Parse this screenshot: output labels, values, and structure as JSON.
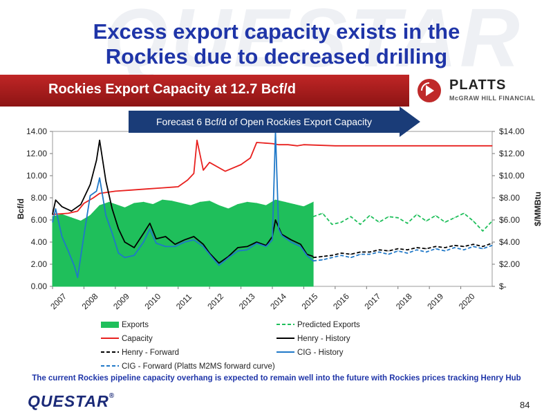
{
  "slide": {
    "watermark": "QUESTAR",
    "title_line1": "Excess export capacity exists in the",
    "title_line2": "Rockies due to decreased drilling",
    "banner_title": "Rockies Export Capacity at 12.7 Bcf/d",
    "platts_name": "PLATTS",
    "platts_sub": "McGRAW HILL FINANCIAL",
    "callout": "Forecast 6 Bcf/d of Open Rockies Export Capacity",
    "footnote": "The current Rockies pipeline capacity overhang is expected to remain well into the future with Rockies prices tracking Henry Hub",
    "logo_text": "QUESTAR",
    "logo_mark": "®",
    "page_number": "84"
  },
  "colors": {
    "title": "#1f35a8",
    "banner": "#b01e1e",
    "exports": "#1fbf5b",
    "capacity": "#e8201e",
    "henry": "#000000",
    "cig": "#1f78c8",
    "arrow": "#1a3c78"
  },
  "chart_data": {
    "type": "line",
    "ylabel_left": "Bcf/d",
    "ylabel_right": "$/MMBtu",
    "ylim_left": [
      0,
      14
    ],
    "ylim_right": [
      0,
      14
    ],
    "yticks_left": [
      "0.00",
      "2.00",
      "4.00",
      "6.00",
      "8.00",
      "10.00",
      "12.00",
      "14.00"
    ],
    "yticks_right": [
      "$-",
      "$2.00",
      "$4.00",
      "$6.00",
      "$8.00",
      "$10.00",
      "$12.00",
      "$14.00"
    ],
    "xlim": [
      2007,
      2021
    ],
    "xticks": [
      "2007",
      "2008",
      "2009",
      "2010",
      "2011",
      "2012",
      "2013",
      "2014",
      "2015",
      "2016",
      "2017",
      "2018",
      "2019",
      "2020"
    ],
    "legend_position": "bottom",
    "legend": [
      {
        "label": "Exports",
        "style": "area",
        "color": "#1fbf5b"
      },
      {
        "label": "Predicted Exports",
        "style": "dashed",
        "color": "#1fbf5b"
      },
      {
        "label": "Capacity",
        "style": "solid",
        "color": "#e8201e"
      },
      {
        "label": "Henry - History",
        "style": "solid",
        "color": "#000000"
      },
      {
        "label": "Henry - Forward",
        "style": "dashed",
        "color": "#000000"
      },
      {
        "label": "CIG - History",
        "style": "solid",
        "color": "#1f78c8"
      },
      {
        "label": "CIG - Forward (Platts M2MS forward curve)",
        "style": "dashed",
        "color": "#1f78c8"
      }
    ],
    "series": [
      {
        "name": "Exports",
        "axis": "left",
        "x": [
          2007.0,
          2007.3,
          2007.6,
          2007.9,
          2008.2,
          2008.5,
          2008.8,
          2009.0,
          2009.3,
          2009.6,
          2009.9,
          2010.2,
          2010.5,
          2010.8,
          2011.1,
          2011.4,
          2011.7,
          2012.0,
          2012.3,
          2012.6,
          2012.9,
          2013.2,
          2013.5,
          2013.8,
          2014.1,
          2014.4,
          2014.7,
          2015.0,
          2015.3
        ],
        "values": [
          6.3,
          6.5,
          6.2,
          5.9,
          6.4,
          7.3,
          7.6,
          7.4,
          7.1,
          7.5,
          7.6,
          7.4,
          7.8,
          7.7,
          7.5,
          7.3,
          7.6,
          7.7,
          7.3,
          7.0,
          7.4,
          7.6,
          7.5,
          7.3,
          7.8,
          7.6,
          7.4,
          7.2,
          7.6
        ]
      },
      {
        "name": "Predicted Exports",
        "axis": "left",
        "x": [
          2015.3,
          2015.6,
          2015.9,
          2016.2,
          2016.5,
          2016.8,
          2017.1,
          2017.4,
          2017.7,
          2018.0,
          2018.3,
          2018.6,
          2018.9,
          2019.2,
          2019.5,
          2019.8,
          2020.1,
          2020.4,
          2020.7,
          2021.0
        ],
        "values": [
          6.3,
          6.6,
          5.6,
          5.8,
          6.3,
          5.6,
          6.4,
          5.8,
          6.3,
          6.2,
          5.7,
          6.5,
          5.9,
          6.4,
          5.8,
          6.2,
          6.6,
          5.9,
          5.0,
          5.9
        ]
      },
      {
        "name": "Capacity",
        "axis": "left",
        "x": [
          2007.0,
          2007.5,
          2007.8,
          2008.0,
          2008.3,
          2008.5,
          2009.0,
          2009.5,
          2010.0,
          2010.5,
          2011.0,
          2011.3,
          2011.5,
          2011.6,
          2011.8,
          2012.0,
          2012.5,
          2013.0,
          2013.3,
          2013.5,
          2014.0,
          2014.2,
          2014.5,
          2014.8,
          2015.0,
          2016.0,
          2017.0,
          2018.0,
          2019.0,
          2020.0,
          2021.0
        ],
        "values": [
          6.5,
          6.6,
          6.8,
          7.5,
          8.0,
          8.4,
          8.6,
          8.7,
          8.8,
          8.9,
          9.0,
          9.6,
          10.2,
          13.2,
          10.5,
          11.2,
          10.4,
          11.0,
          11.6,
          13.0,
          12.9,
          12.8,
          12.8,
          12.7,
          12.8,
          12.7,
          12.7,
          12.7,
          12.7,
          12.7,
          12.7
        ]
      },
      {
        "name": "Henry - History",
        "axis": "right",
        "x": [
          2007.0,
          2007.1,
          2007.3,
          2007.6,
          2007.9,
          2008.2,
          2008.4,
          2008.5,
          2008.7,
          2008.9,
          2009.1,
          2009.3,
          2009.6,
          2009.9,
          2010.1,
          2010.3,
          2010.6,
          2010.9,
          2011.2,
          2011.5,
          2011.8,
          2012.0,
          2012.3,
          2012.6,
          2012.9,
          2013.2,
          2013.5,
          2013.8,
          2014.0,
          2014.1,
          2014.3,
          2014.6,
          2014.9,
          2015.1,
          2015.3
        ],
        "values": [
          6.5,
          7.8,
          7.2,
          6.8,
          7.4,
          9.2,
          11.4,
          13.2,
          9.5,
          7.0,
          5.2,
          4.0,
          3.5,
          4.8,
          5.7,
          4.3,
          4.5,
          3.8,
          4.2,
          4.5,
          3.8,
          3.0,
          2.1,
          2.7,
          3.5,
          3.6,
          4.0,
          3.7,
          4.5,
          6.0,
          4.7,
          4.2,
          3.8,
          2.9,
          2.7
        ]
      },
      {
        "name": "Henry - Forward",
        "axis": "right",
        "x": [
          2015.3,
          2015.6,
          2015.9,
          2016.2,
          2016.5,
          2016.8,
          2017.1,
          2017.4,
          2017.7,
          2018.0,
          2018.3,
          2018.6,
          2018.9,
          2019.2,
          2019.5,
          2019.8,
          2020.1,
          2020.4,
          2020.7,
          2021.0
        ],
        "values": [
          2.6,
          2.7,
          2.8,
          3.0,
          2.9,
          3.1,
          3.1,
          3.3,
          3.2,
          3.4,
          3.3,
          3.5,
          3.4,
          3.6,
          3.5,
          3.7,
          3.6,
          3.8,
          3.6,
          3.9
        ]
      },
      {
        "name": "CIG - History",
        "axis": "right",
        "x": [
          2007.0,
          2007.1,
          2007.3,
          2007.5,
          2007.7,
          2007.8,
          2008.0,
          2008.2,
          2008.4,
          2008.5,
          2008.7,
          2008.9,
          2009.1,
          2009.3,
          2009.6,
          2009.9,
          2010.1,
          2010.3,
          2010.6,
          2010.9,
          2011.2,
          2011.5,
          2011.8,
          2012.0,
          2012.3,
          2012.6,
          2012.9,
          2013.2,
          2013.5,
          2013.8,
          2014.0,
          2014.1,
          2014.2,
          2014.3,
          2014.6,
          2014.9,
          2015.1,
          2015.3
        ],
        "values": [
          5.8,
          7.0,
          4.5,
          3.2,
          1.8,
          0.8,
          4.6,
          8.2,
          8.6,
          9.8,
          6.4,
          4.8,
          3.0,
          2.6,
          2.8,
          4.0,
          5.2,
          3.9,
          3.6,
          3.6,
          4.0,
          4.2,
          3.6,
          2.9,
          1.9,
          2.6,
          3.2,
          3.3,
          3.9,
          3.6,
          4.2,
          14.0,
          5.2,
          4.6,
          4.0,
          3.6,
          2.8,
          2.3
        ]
      },
      {
        "name": "CIG - Forward (Platts M2MS forward curve)",
        "axis": "right",
        "x": [
          2015.3,
          2015.6,
          2015.9,
          2016.2,
          2016.5,
          2016.8,
          2017.1,
          2017.4,
          2017.7,
          2018.0,
          2018.3,
          2018.6,
          2018.9,
          2019.2,
          2019.5,
          2019.8,
          2020.1,
          2020.4,
          2020.7,
          2021.0
        ],
        "values": [
          2.3,
          2.4,
          2.6,
          2.8,
          2.6,
          2.9,
          2.9,
          3.1,
          2.9,
          3.2,
          3.0,
          3.3,
          3.1,
          3.4,
          3.2,
          3.5,
          3.3,
          3.6,
          3.4,
          3.7
        ]
      }
    ]
  }
}
